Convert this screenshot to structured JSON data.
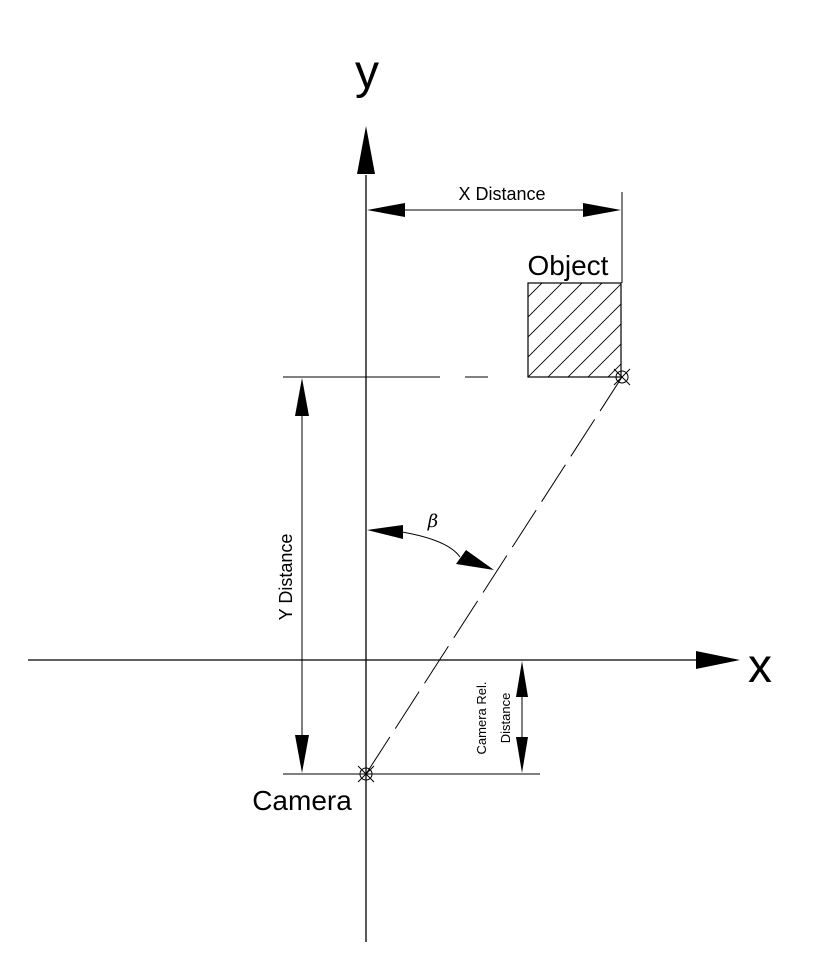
{
  "labels": {
    "y_axis": "y",
    "x_axis": "x",
    "x_distance": "X Distance",
    "y_distance": "Y Distance",
    "object": "Object",
    "camera": "Camera",
    "camera_rel_line1": "Camera Rel.",
    "camera_rel_line2": "Distance",
    "beta": "β"
  },
  "colors": {
    "stroke": "#000000",
    "background": "#ffffff"
  }
}
